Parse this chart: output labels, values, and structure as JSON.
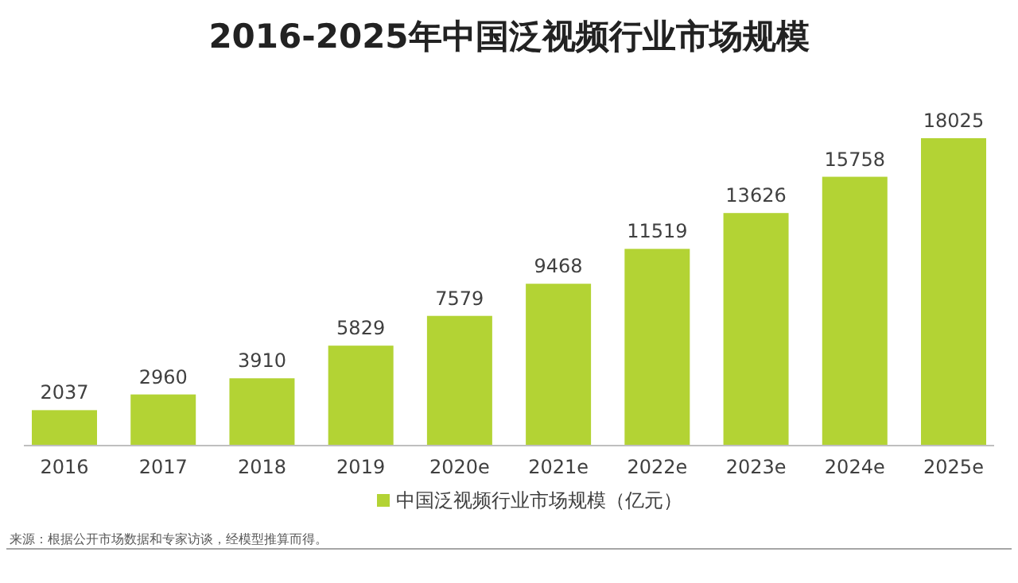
{
  "chart_data": {
    "type": "bar",
    "title": "2016-2025年中国泛视频行业市场规模",
    "categories": [
      "2016",
      "2017",
      "2018",
      "2019",
      "2020e",
      "2021e",
      "2022e",
      "2023e",
      "2024e",
      "2025e"
    ],
    "series": [
      {
        "name": "中国泛视频行业市场规模（亿元）",
        "color": "#b3d334",
        "values": [
          2037,
          2960,
          3910,
          5829,
          7579,
          9468,
          11519,
          13626,
          15758,
          18025
        ]
      }
    ],
    "data_labels": true,
    "legend": "bottom",
    "grid": false,
    "annotations": [
      "来源：根据公开市场数据和专家访谈，经模型推算而得。"
    ]
  }
}
